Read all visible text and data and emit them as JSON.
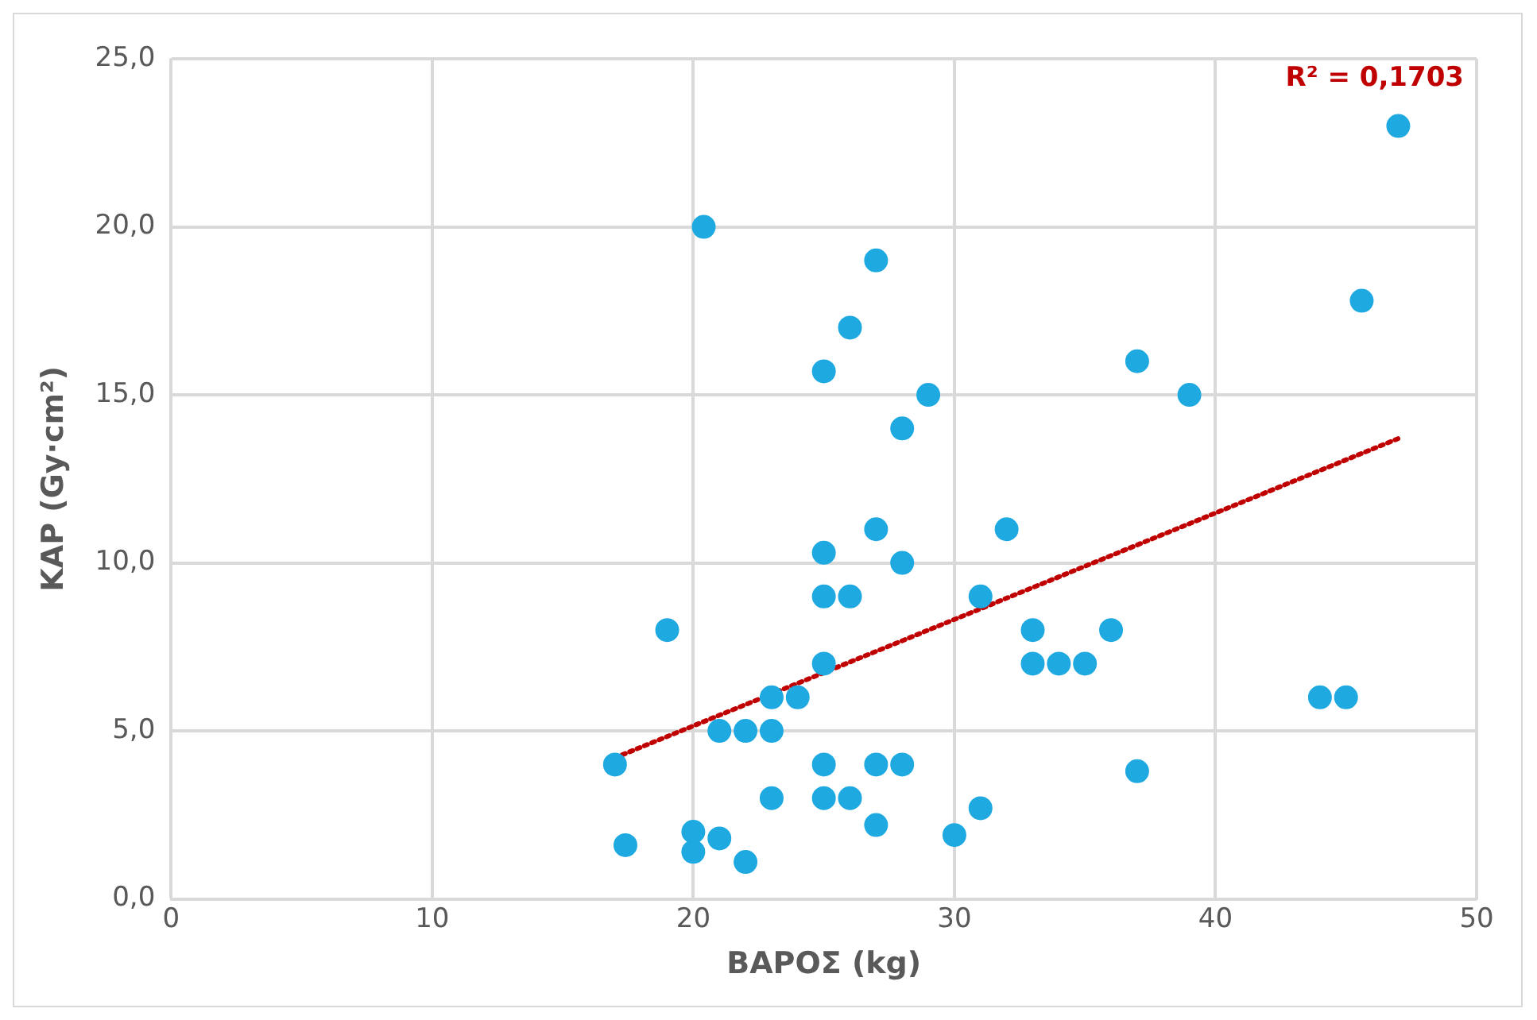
{
  "chart_data": {
    "type": "scatter",
    "xlabel": "ΒΑΡΟΣ (kg)",
    "ylabel": "KAP (Gy·cm²)",
    "annotations": [
      "R² = 0,1703"
    ],
    "xlim": [
      0,
      50
    ],
    "xticks": [
      0,
      10,
      20,
      30,
      40,
      50
    ],
    "ylim": [
      0,
      25
    ],
    "yticks": [
      {
        "value": 0,
        "label": "0,0"
      },
      {
        "value": 5,
        "label": "5,0"
      },
      {
        "value": 10,
        "label": "10,0"
      },
      {
        "value": 15,
        "label": "15,0"
      },
      {
        "value": 20,
        "label": "20,0"
      },
      {
        "value": 25,
        "label": "25,0"
      }
    ],
    "grid": true,
    "marker": "circle",
    "series": [
      {
        "type": "scatter",
        "color": "#1fa9e1",
        "x": [
          17,
          17.4,
          19,
          20,
          20,
          20.4,
          21,
          21,
          22,
          22,
          23,
          23,
          23,
          24,
          25,
          25,
          25,
          25,
          25,
          25,
          26,
          26,
          26,
          27,
          27,
          27,
          27,
          28,
          28,
          28,
          29,
          30,
          31,
          31,
          32,
          33,
          33,
          34,
          35,
          36,
          37,
          37,
          39,
          44,
          45,
          45.6,
          47
        ],
        "values": [
          4,
          1.6,
          8,
          2,
          1.4,
          20,
          5,
          1.8,
          5,
          1.1,
          6,
          5,
          3,
          6,
          15.7,
          10.3,
          9,
          7,
          4,
          3,
          9,
          17,
          3,
          19,
          11,
          4,
          2.2,
          14,
          10,
          4,
          15,
          1.9,
          9,
          2.7,
          11,
          8,
          7,
          7,
          7,
          8,
          16,
          3.8,
          15,
          6,
          6,
          17.8,
          23
        ]
      },
      {
        "type": "line",
        "color": "#c00000",
        "marker": "none",
        "line_style": "dotted",
        "x": [
          17,
          47
        ],
        "values": [
          4.2,
          13.7
        ]
      }
    ]
  }
}
